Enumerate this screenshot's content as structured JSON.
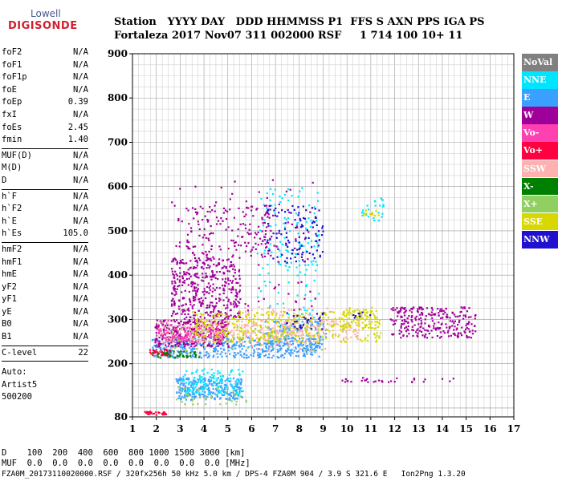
{
  "logo": {
    "line1": "Lowell",
    "line2": "DIGISONDE"
  },
  "header": {
    "line1": "Station   YYYY DAY   DDD HHMMSS P1  FFS S AXN PPS IGA PS",
    "line2": "Fortaleza 2017 Nov07 311 002000 RSF     1 714 100 10+ 11"
  },
  "params": [
    [
      {
        "k": "foF2",
        "v": "N/A"
      },
      {
        "k": "foF1",
        "v": "N/A"
      },
      {
        "k": "foF1p",
        "v": "N/A"
      },
      {
        "k": "foE",
        "v": "N/A"
      },
      {
        "k": "foEp",
        "v": "0.39"
      },
      {
        "k": "fxI",
        "v": "N/A"
      },
      {
        "k": "foEs",
        "v": "2.45"
      },
      {
        "k": "fmin",
        "v": "1.40"
      }
    ],
    [
      {
        "k": "MUF(D)",
        "v": "N/A"
      },
      {
        "k": "M(D)",
        "v": "N/A"
      },
      {
        "k": "D",
        "v": "N/A"
      }
    ],
    [
      {
        "k": "h`F",
        "v": "N/A"
      },
      {
        "k": "h`F2",
        "v": "N/A"
      },
      {
        "k": "h`E",
        "v": "N/A"
      },
      {
        "k": "h`Es",
        "v": "105.0"
      }
    ],
    [
      {
        "k": "hmF2",
        "v": "N/A"
      },
      {
        "k": "hmF1",
        "v": "N/A"
      },
      {
        "k": "hmE",
        "v": "N/A"
      },
      {
        "k": "yF2",
        "v": "N/A"
      },
      {
        "k": "yF1",
        "v": "N/A"
      },
      {
        "k": "yE",
        "v": "N/A"
      },
      {
        "k": "B0",
        "v": "N/A"
      },
      {
        "k": "B1",
        "v": "N/A"
      }
    ],
    [
      {
        "k": "C-level",
        "v": "22"
      }
    ]
  ],
  "auto": {
    "line1": "Auto:",
    "line2": "Artist5",
    "line3": "500200"
  },
  "footer": {
    "d_row": "D    100  200  400  600  800 1000 1500 3000 [km]",
    "muf_row": "MUF  0.0  0.0  0.0  0.0  0.0  0.0  0.0  0.0 [MHz]",
    "file_row": "FZA0M_20173110020000.RSF / 320fx256h 50 kHz 5.0 km / DPS-4 FZA0M 904 / 3.9 S 321.6 E   Ion2Png 1.3.20"
  },
  "legend": [
    {
      "label": "NoVal",
      "color": "#808080"
    },
    {
      "label": "NNE",
      "color": "#00e5ff"
    },
    {
      "label": "E",
      "color": "#3aa0ff"
    },
    {
      "label": "W",
      "color": "#a0009a"
    },
    {
      "label": "Vo-",
      "color": "#ff40b0"
    },
    {
      "label": "Vo+",
      "color": "#ff0040"
    },
    {
      "label": "SSW",
      "color": "#ffb0b0"
    },
    {
      "label": "X-",
      "color": "#008000"
    },
    {
      "label": "X+",
      "color": "#90d060"
    },
    {
      "label": "SSE",
      "color": "#d8d800"
    },
    {
      "label": "NNW",
      "color": "#2010d0"
    }
  ],
  "chart_data": {
    "type": "scatter",
    "xlim": [
      1,
      17
    ],
    "ylim": [
      80,
      900
    ],
    "x_ticks": [
      1,
      2,
      3,
      4,
      5,
      6,
      7,
      8,
      9,
      10,
      11,
      12,
      13,
      14,
      15,
      16,
      17
    ],
    "y_ticks": [
      80,
      200,
      300,
      400,
      500,
      600,
      700,
      800,
      900
    ],
    "grid": true,
    "legend_position": "right",
    "series": [
      {
        "name": "E",
        "clusters": [
          {
            "x": [
              2.8,
              5.6
            ],
            "y": [
              120,
              170
            ],
            "n": 260
          },
          {
            "x": [
              1.8,
              8.8
            ],
            "y": [
              215,
              262
            ],
            "n": 420
          },
          {
            "x": [
              6.5,
              9.1
            ],
            "y": [
              230,
              300
            ],
            "n": 160
          }
        ]
      },
      {
        "name": "NNE",
        "clusters": [
          {
            "x": [
              3.0,
              5.6
            ],
            "y": [
              130,
              190
            ],
            "n": 120
          },
          {
            "x": [
              6.2,
              8.8
            ],
            "y": [
              300,
              600
            ],
            "n": 140
          },
          {
            "x": [
              10.5,
              11.5
            ],
            "y": [
              520,
              580
            ],
            "n": 25
          }
        ]
      },
      {
        "name": "W",
        "clusters": [
          {
            "x": [
              1.9,
              5.0
            ],
            "y": [
              240,
              300
            ],
            "n": 320
          },
          {
            "x": [
              2.6,
              5.5
            ],
            "y": [
              300,
              440
            ],
            "n": 380
          },
          {
            "x": [
              3.2,
              6.8
            ],
            "y": [
              440,
              560
            ],
            "n": 150
          },
          {
            "x": [
              11.8,
              15.4
            ],
            "y": [
              260,
              330
            ],
            "n": 260
          },
          {
            "x": [
              9.5,
              14.7
            ],
            "y": [
              160,
              170
            ],
            "n": 30
          },
          {
            "x": [
              2.6,
              8.8
            ],
            "y": [
              320,
              620
            ],
            "n": 120
          }
        ]
      },
      {
        "name": "Vo-",
        "clusters": [
          {
            "x": [
              2.0,
              4.8
            ],
            "y": [
              250,
              290
            ],
            "n": 160
          }
        ]
      },
      {
        "name": "Vo+",
        "clusters": [
          {
            "x": [
              1.7,
              2.6
            ],
            "y": [
              220,
              235
            ],
            "n": 40
          },
          {
            "x": [
              1.4,
              2.4
            ],
            "y": [
              86,
              94
            ],
            "n": 30
          }
        ]
      },
      {
        "name": "SSW",
        "clusters": [
          {
            "x": [
              2.0,
              10.5
            ],
            "y": [
              250,
              300
            ],
            "n": 260
          },
          {
            "x": [
              5.6,
              9.4
            ],
            "y": [
              230,
              330
            ],
            "n": 120
          }
        ]
      },
      {
        "name": "X-",
        "clusters": [
          {
            "x": [
              1.8,
              3.8
            ],
            "y": [
              215,
              230
            ],
            "n": 40
          }
        ]
      },
      {
        "name": "X+",
        "clusters": [
          {
            "x": [
              2.5,
              9.0
            ],
            "y": [
              230,
              290
            ],
            "n": 60
          },
          {
            "x": [
              2.8,
              5.8
            ],
            "y": [
              110,
              150
            ],
            "n": 40
          }
        ]
      },
      {
        "name": "SSE",
        "clusters": [
          {
            "x": [
              3.5,
              11.4
            ],
            "y": [
              250,
              320
            ],
            "n": 360
          },
          {
            "x": [
              9.8,
              11.2
            ],
            "y": [
              280,
              330
            ],
            "n": 60
          },
          {
            "x": [
              10.6,
              11.4
            ],
            "y": [
              535,
              548
            ],
            "n": 12
          }
        ]
      },
      {
        "name": "NNW",
        "clusters": [
          {
            "x": [
              6.6,
              9.0
            ],
            "y": [
              430,
              560
            ],
            "n": 110
          },
          {
            "x": [
              7.4,
              9.0
            ],
            "y": [
              280,
              320
            ],
            "n": 30
          },
          {
            "x": [
              10.0,
              11.0
            ],
            "y": [
              300,
              320
            ],
            "n": 8
          }
        ]
      }
    ]
  }
}
